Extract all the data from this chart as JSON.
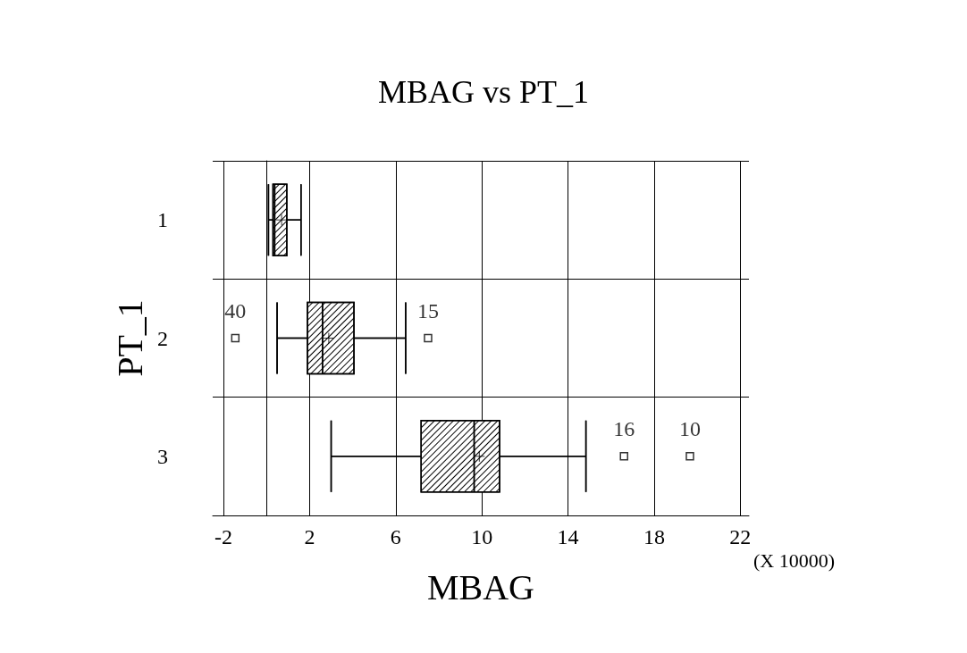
{
  "chart_data": {
    "type": "box",
    "title": "MBAG vs PT_1",
    "xlabel": "MBAG",
    "ylabel": "PT_1",
    "orientation": "horizontal",
    "categories": [
      "1",
      "2",
      "3"
    ],
    "boxes": [
      {
        "low": 0.09,
        "q1": 0.3,
        "median": 0.38,
        "q3": 0.94,
        "high": 1.6,
        "mean": 0.7
      },
      {
        "low": 0.49,
        "q1": 1.9,
        "median": 2.6,
        "q3": 4.06,
        "high": 6.46,
        "mean": 2.89,
        "outliers": [
          -1.45,
          7.5
        ]
      },
      {
        "low": 3.0,
        "q1": 7.18,
        "median": 9.64,
        "q3": 10.82,
        "high": 14.83,
        "mean": 9.88,
        "outliers": [
          16.6,
          19.66
        ]
      }
    ],
    "color": "#000000",
    "xlim": [
      -2.5,
      22.4
    ],
    "xticks": [
      -2,
      2,
      6,
      10,
      14,
      18,
      22
    ],
    "grid": true,
    "annotations": [
      "40",
      "15",
      "16",
      "10",
      "(X 10000)"
    ]
  }
}
